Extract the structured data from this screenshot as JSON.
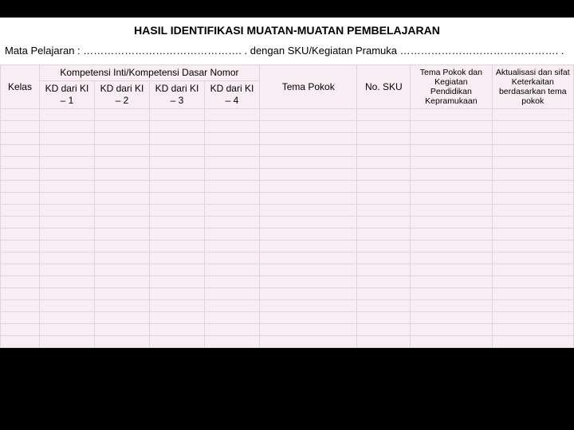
{
  "title": "HASIL IDENTIFIKASI MUATAN-MUATAN PEMBELAJARAN",
  "subline": "Mata Pelajaran : ………………………………………. . dengan SKU/Kegiatan Pramuka ………………………………………. .",
  "headers": {
    "kelas": "Kelas",
    "kompetensi_group": "Kompetensi Inti/Kompetensi Dasar Nomor",
    "kd1": "KD dari KI – 1",
    "kd2": "KD dari KI – 2",
    "kd3": "KD dari KI – 3",
    "kd4": "KD dari KI – 4",
    "tema_pokok": "Tema Pokok",
    "no_sku": "No. SKU",
    "tema_kegiatan": "Tema Pokok dan Kegiatan Pendidikan Kepramukaan",
    "aktualisasi": "Aktualisasi dan sifat Keterkaitan berdasarkan tema pokok"
  },
  "row_count": 20,
  "colors": {
    "page_bg": "#000000",
    "panel_bg": "#ffffff",
    "cell_bg": "#f7edf2",
    "border": "#e7d0da",
    "text": "#000000"
  }
}
